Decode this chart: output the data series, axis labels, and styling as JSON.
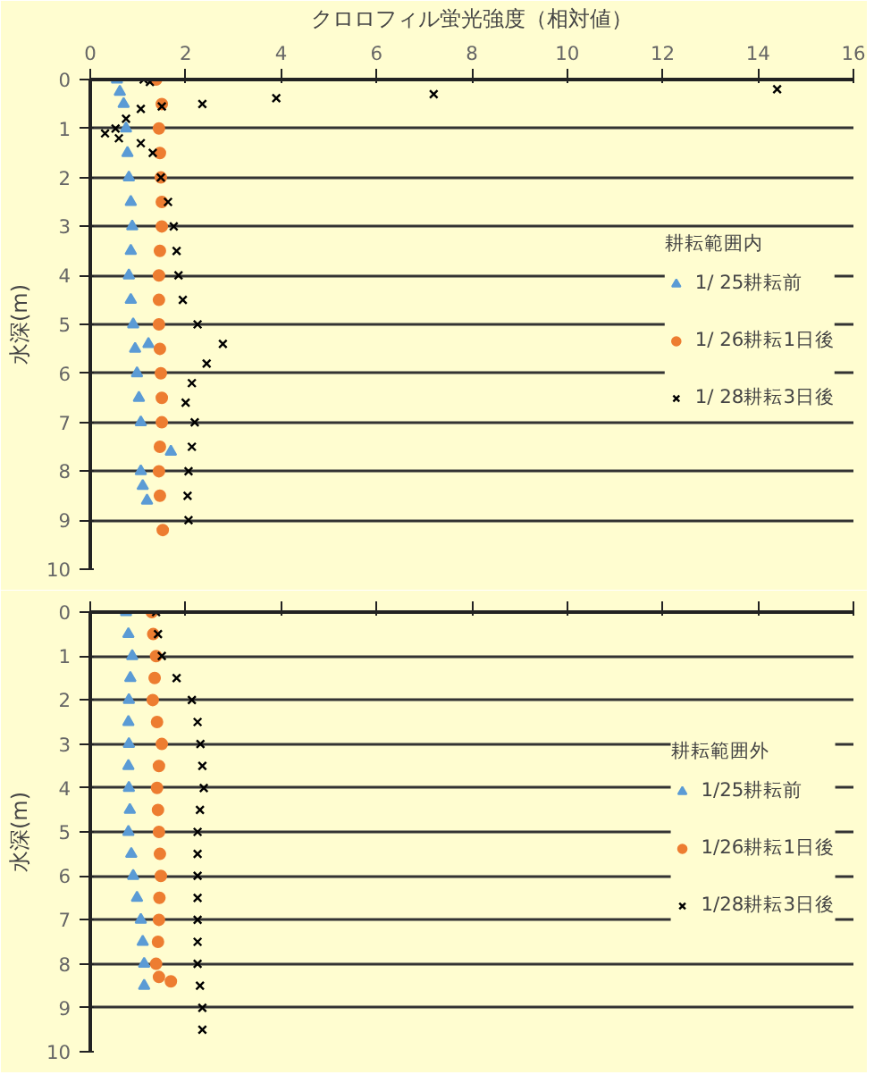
{
  "chart_data": [
    {
      "type": "scatter",
      "xlabel": "クロロフィル蛍光強度（相対値）",
      "ylabel": "水深(m)",
      "legend_title": "耕耘範囲内",
      "legend": "right",
      "grid": "y",
      "xlim": [
        0,
        16
      ],
      "xticks": [
        0,
        2,
        4,
        6,
        8,
        10,
        12,
        14,
        16
      ],
      "ylim": [
        10,
        0
      ],
      "yticks": [
        0,
        1,
        2,
        3,
        4,
        5,
        6,
        7,
        8,
        9,
        10
      ],
      "series": [
        {
          "name": "1/ 25耕耘前",
          "color": "#5b9bd5",
          "marker": "triangle",
          "x": [
            0.56,
            0.62,
            0.7,
            0.75,
            0.78,
            0.81,
            0.85,
            0.88,
            0.85,
            0.81,
            0.85,
            0.9,
            1.22,
            0.94,
            0.98,
            1.02,
            1.06,
            1.69,
            1.06,
            1.1,
            1.19
          ],
          "values": [
            0,
            0.25,
            0.5,
            1,
            1.5,
            2,
            2.5,
            3,
            3.5,
            4,
            4.5,
            5,
            5.4,
            5.5,
            6,
            6.5,
            7,
            7.6,
            8,
            8.3,
            8.6
          ]
        },
        {
          "name": "1/ 26耕耘1日後",
          "color": "#ed7d31",
          "marker": "circle",
          "x": [
            1.38,
            1.5,
            1.44,
            1.46,
            1.48,
            1.5,
            1.5,
            1.46,
            1.44,
            1.44,
            1.44,
            1.46,
            1.48,
            1.5,
            1.5,
            1.46,
            1.44,
            1.46,
            1.52
          ],
          "values": [
            0,
            0.5,
            1,
            1.5,
            2,
            2.5,
            3,
            3.5,
            4,
            4.5,
            5,
            5.5,
            6,
            6.5,
            7,
            7.5,
            8,
            8.5,
            9.2
          ]
        },
        {
          "name": "1/ 28耕耘3日後",
          "color": "#000000",
          "marker": "cross",
          "x": [
            1.12,
            1.25,
            14.4,
            7.2,
            3.9,
            2.35,
            1.5,
            1.06,
            0.75,
            0.53,
            0.31,
            0.6,
            1.06,
            1.31,
            1.48,
            1.63,
            1.75,
            1.81,
            1.85,
            1.94,
            2.25,
            2.78,
            2.44,
            2.13,
            2.0,
            2.19,
            2.13,
            2.06,
            2.04,
            2.06
          ],
          "values": [
            0,
            0.05,
            0.2,
            0.3,
            0.38,
            0.5,
            0.55,
            0.6,
            0.8,
            1.0,
            1.1,
            1.2,
            1.3,
            1.5,
            2,
            2.5,
            3,
            3.5,
            4,
            4.5,
            5,
            5.4,
            5.8,
            6.2,
            6.6,
            7,
            7.5,
            8,
            8.5,
            9
          ]
        }
      ]
    },
    {
      "type": "scatter",
      "ylabel": "水深(m)",
      "legend_title": "耕耘範囲外",
      "legend": "right",
      "grid": "y",
      "tick_labels": "y",
      "xlim": [
        0,
        16
      ],
      "xticks": [
        0,
        2,
        4,
        6,
        8,
        10,
        12,
        14,
        16
      ],
      "ylim": [
        10,
        0
      ],
      "yticks": [
        0,
        1,
        2,
        3,
        4,
        5,
        6,
        7,
        8,
        9,
        10
      ],
      "series": [
        {
          "name": "1/25耕耘前",
          "color": "#5b9bd5",
          "marker": "triangle",
          "x": [
            0.75,
            0.8,
            0.88,
            0.84,
            0.81,
            0.8,
            0.81,
            0.8,
            0.81,
            0.83,
            0.8,
            0.86,
            0.9,
            0.98,
            1.06,
            1.1,
            1.13,
            1.13
          ],
          "values": [
            0,
            0.5,
            1,
            1.5,
            2,
            2.5,
            3,
            3.5,
            4,
            4.5,
            5,
            5.5,
            6,
            6.5,
            7,
            7.5,
            8,
            8.5
          ]
        },
        {
          "name": "1/26耕耘1日後",
          "color": "#ed7d31",
          "marker": "circle",
          "x": [
            1.29,
            1.32,
            1.38,
            1.35,
            1.31,
            1.4,
            1.5,
            1.44,
            1.4,
            1.42,
            1.44,
            1.46,
            1.48,
            1.45,
            1.44,
            1.42,
            1.38,
            1.44,
            1.69
          ],
          "values": [
            0,
            0.5,
            1,
            1.5,
            2,
            2.5,
            3,
            3.5,
            4,
            4.5,
            5,
            5.5,
            6,
            6.5,
            7,
            7.5,
            8,
            8.3,
            8.4
          ]
        },
        {
          "name": "1/28耕耘3日後",
          "color": "#000000",
          "marker": "cross",
          "x": [
            1.38,
            1.42,
            1.5,
            1.81,
            2.13,
            2.25,
            2.31,
            2.35,
            2.38,
            2.3,
            2.25,
            2.25,
            2.25,
            2.25,
            2.25,
            2.25,
            2.25,
            2.3,
            2.35,
            2.35
          ],
          "values": [
            0,
            0.5,
            1,
            1.5,
            2,
            2.5,
            3,
            3.5,
            4,
            4.5,
            5,
            5.5,
            6,
            6.5,
            7,
            7.5,
            8,
            8.5,
            9,
            9.5
          ]
        }
      ]
    }
  ]
}
